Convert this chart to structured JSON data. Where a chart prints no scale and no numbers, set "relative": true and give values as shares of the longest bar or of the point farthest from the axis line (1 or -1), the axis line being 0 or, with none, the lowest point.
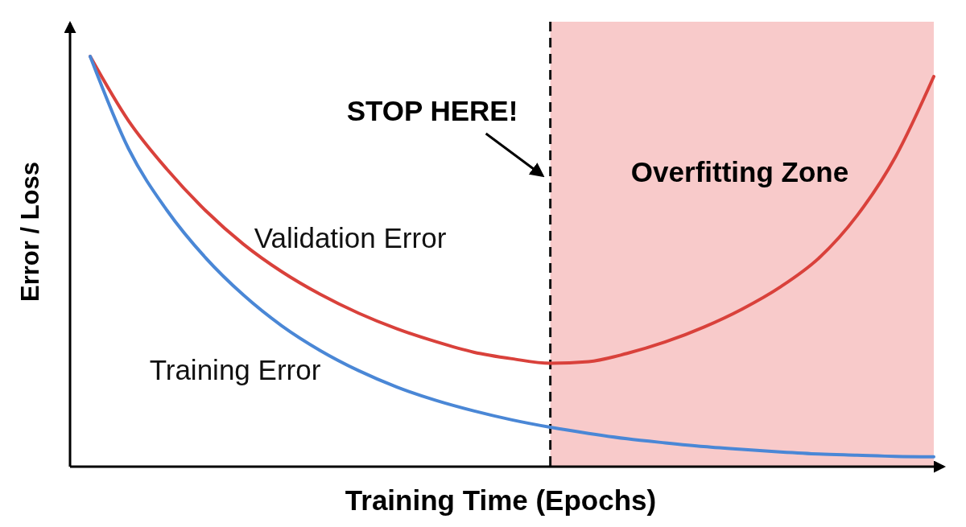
{
  "chart_data": {
    "type": "line",
    "xlabel": "Training Time (Epochs)",
    "ylabel": "Error / Loss",
    "relative": true,
    "categories": [
      null,
      null,
      null,
      null,
      null,
      null,
      null,
      null,
      null,
      null,
      null,
      null,
      null,
      null,
      null,
      null,
      null,
      null,
      null,
      null,
      null,
      null,
      null
    ],
    "series": [
      {
        "name": "Validation Error",
        "color": "#d9413b",
        "values": [
          1.0,
          0.843,
          0.725,
          0.625,
          0.542,
          0.475,
          0.42,
          0.374,
          0.336,
          0.305,
          0.279,
          0.263,
          0.252,
          0.256,
          0.276,
          0.304,
          0.34,
          0.384,
          0.438,
          0.508,
          0.612,
          0.755,
          0.951
        ]
      },
      {
        "name": "Training Error",
        "color": "#4a87d6",
        "values": [
          1.0,
          0.775,
          0.625,
          0.51,
          0.418,
          0.343,
          0.283,
          0.234,
          0.194,
          0.162,
          0.136,
          0.114,
          0.096,
          0.081,
          0.068,
          0.058,
          0.049,
          0.042,
          0.036,
          0.031,
          0.028,
          0.025,
          0.024
        ]
      }
    ],
    "annotations": [
      "STOP HERE!",
      "Overfitting Zone"
    ]
  }
}
